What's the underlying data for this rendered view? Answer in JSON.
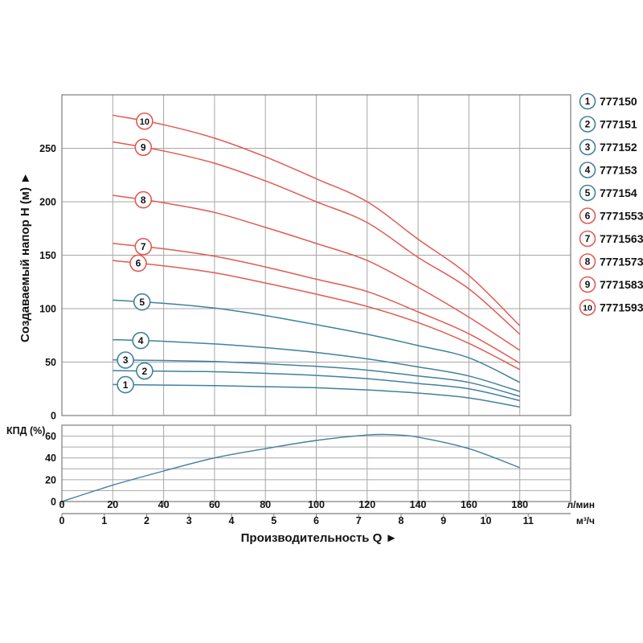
{
  "labels": {
    "y_title": "Создаваемый напор H (м)  ►",
    "x_title": "Производительность Q  ►",
    "kpd": "КПД (%)",
    "unit_lmin": "л/мин",
    "unit_m3h": "м³/ч"
  },
  "colors": {
    "blue": "#41809e",
    "red": "#e25a52",
    "grid": "#a6a6a6",
    "border": "#7d7d7d",
    "text": "#111111",
    "background": "#ffffff"
  },
  "legend": {
    "items": [
      {
        "num": "1",
        "model": "777150",
        "color": "blue"
      },
      {
        "num": "2",
        "model": "777151",
        "color": "blue"
      },
      {
        "num": "3",
        "model": "777152",
        "color": "blue"
      },
      {
        "num": "4",
        "model": "777153",
        "color": "blue"
      },
      {
        "num": "5",
        "model": "777154",
        "color": "blue"
      },
      {
        "num": "6",
        "model": "7771553",
        "color": "red"
      },
      {
        "num": "7",
        "model": "7771563",
        "color": "red"
      },
      {
        "num": "8",
        "model": "7771573",
        "color": "red"
      },
      {
        "num": "9",
        "model": "7771583",
        "color": "red"
      },
      {
        "num": "10",
        "model": "7771593",
        "color": "red"
      }
    ]
  },
  "chart_data": [
    {
      "type": "line",
      "title": "Напорные характеристики насосов",
      "xlabel": "Производительность Q",
      "ylabel": "Создаваемый напор H (м)",
      "x_unit_primary": "л/мин",
      "x_unit_secondary": "м³/ч",
      "xlim": [
        0,
        200
      ],
      "ylim": [
        0,
        300
      ],
      "xticks": [
        0,
        20,
        40,
        60,
        80,
        100,
        120,
        140,
        160,
        180
      ],
      "yticks": [
        0,
        50,
        100,
        150,
        200,
        250
      ],
      "xgrid": [
        20,
        40,
        60,
        80,
        100,
        120,
        140,
        160,
        180
      ],
      "ygrid": [
        50,
        100,
        150,
        200,
        250
      ],
      "x2ticks": [
        0,
        1,
        2,
        3,
        4,
        5,
        6,
        7,
        8,
        9,
        10,
        11
      ],
      "grid": true,
      "legend_position": "right",
      "x": [
        20,
        40,
        60,
        80,
        100,
        120,
        140,
        160,
        180
      ],
      "series": [
        {
          "id": "1",
          "model": "777150",
          "color": "blue",
          "badge_q": 25,
          "values": [
            29,
            28.5,
            28,
            27,
            26,
            24,
            21,
            16.5,
            8
          ]
        },
        {
          "id": "2",
          "model": "777151",
          "color": "blue",
          "badge_q": 32.5,
          "values": [
            42,
            41.5,
            41,
            39.5,
            37.5,
            34.5,
            30,
            25,
            14
          ]
        },
        {
          "id": "3",
          "model": "777152",
          "color": "blue",
          "badge_q": 25,
          "values": [
            52,
            51.5,
            50.5,
            48.5,
            46,
            42.5,
            37,
            31,
            18
          ]
        },
        {
          "id": "4",
          "model": "777153",
          "color": "blue",
          "badge_q": 31,
          "values": [
            71,
            69.5,
            67,
            63.5,
            59,
            53,
            45.5,
            37,
            22.5
          ]
        },
        {
          "id": "5",
          "model": "777154",
          "color": "blue",
          "badge_q": 31.5,
          "values": [
            108,
            105,
            100.5,
            93.5,
            85,
            76,
            65.5,
            54,
            31
          ]
        },
        {
          "id": "6",
          "model": "7771553",
          "color": "red",
          "badge_q": 30,
          "values": [
            145,
            140,
            133.5,
            124,
            113.5,
            102,
            87,
            67.5,
            43
          ]
        },
        {
          "id": "7",
          "model": "7771563",
          "color": "red",
          "badge_q": 32,
          "values": [
            161,
            156,
            149,
            139,
            127.5,
            116,
            97,
            76.5,
            49
          ]
        },
        {
          "id": "8",
          "model": "7771573",
          "color": "red",
          "badge_q": 32,
          "values": [
            206,
            199,
            190,
            176,
            161,
            145,
            120,
            92,
            61
          ]
        },
        {
          "id": "9",
          "model": "7771583",
          "color": "red",
          "badge_q": 32,
          "values": [
            256,
            247.5,
            236,
            219.5,
            200,
            180.5,
            148,
            118.5,
            76
          ]
        },
        {
          "id": "10",
          "model": "7771593",
          "color": "red",
          "badge_q": 32.5,
          "values": [
            281,
            272,
            259.5,
            242,
            221.5,
            200,
            165,
            131,
            84
          ]
        }
      ]
    },
    {
      "type": "line",
      "title": "КПД",
      "ylabel": "КПД (%)",
      "xlim": [
        0,
        200
      ],
      "ylim": [
        0,
        70
      ],
      "yticks": [
        0,
        20,
        40,
        60
      ],
      "ygrid": [
        10,
        20,
        30,
        40,
        50,
        60
      ],
      "xgrid": [
        20,
        40,
        60,
        80,
        100,
        120,
        140,
        160,
        180
      ],
      "grid": true,
      "series": [
        {
          "name": "КПД",
          "color": "blue",
          "points": [
            [
              0,
              0
            ],
            [
              20,
              15
            ],
            [
              40,
              28
            ],
            [
              60,
              40
            ],
            [
              80,
              48.5
            ],
            [
              100,
              56
            ],
            [
              120,
              61
            ],
            [
              130,
              61.3
            ],
            [
              140,
              59
            ],
            [
              160,
              48.5
            ],
            [
              180,
              31
            ]
          ]
        }
      ]
    }
  ]
}
